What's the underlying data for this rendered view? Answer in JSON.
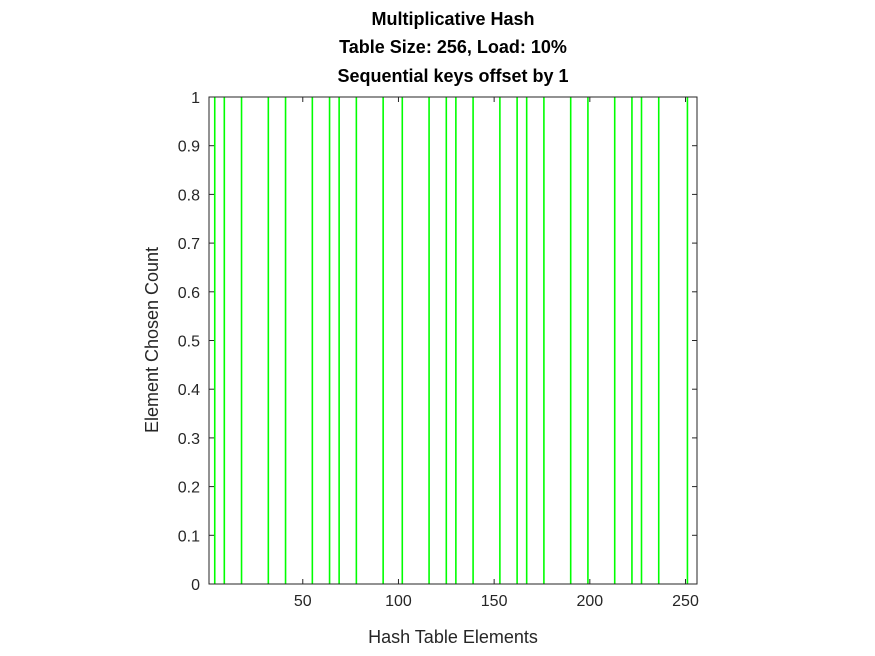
{
  "chart_data": {
    "type": "bar",
    "title_lines": [
      "Multiplicative Hash",
      "Table Size: 256, Load: 10%",
      "Sequential keys offset by 1"
    ],
    "xlabel": "Hash Table Elements",
    "ylabel": "Element Chosen Count",
    "xlim": [
      1,
      256
    ],
    "ylim": [
      0,
      1
    ],
    "x_ticks": [
      50,
      100,
      150,
      200,
      250
    ],
    "y_ticks": [
      0,
      0.1,
      0.2,
      0.3,
      0.4,
      0.5,
      0.6,
      0.7,
      0.8,
      0.9,
      1
    ],
    "y_tick_labels": [
      "0",
      "0.1",
      "0.2",
      "0.3",
      "0.4",
      "0.5",
      "0.6",
      "0.7",
      "0.8",
      "0.9",
      "1"
    ],
    "grid": false,
    "bar_color": "#00ff00",
    "series": [
      {
        "x": [
          4,
          9,
          18,
          32,
          41,
          55,
          64,
          69,
          78,
          92,
          102,
          116,
          125,
          130,
          139,
          153,
          162,
          167,
          176,
          190,
          199,
          213,
          222,
          227,
          236,
          251
        ],
        "values": [
          1,
          1,
          1,
          1,
          1,
          1,
          1,
          1,
          1,
          1,
          1,
          1,
          1,
          1,
          1,
          1,
          1,
          1,
          1,
          1,
          1,
          1,
          1,
          1,
          1,
          1
        ]
      }
    ]
  }
}
